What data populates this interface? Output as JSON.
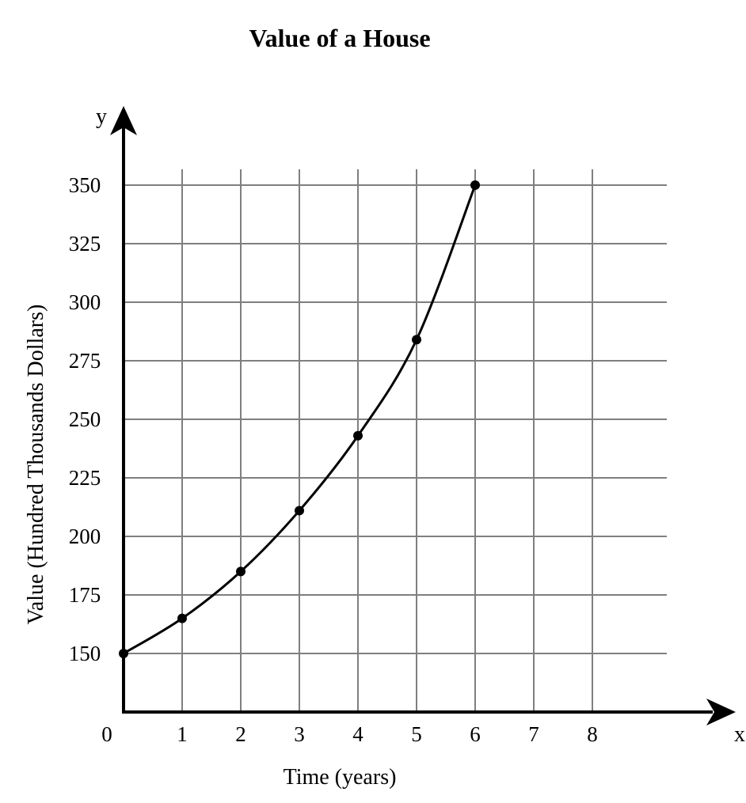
{
  "chart_data": {
    "type": "line",
    "title": "Value of a House",
    "xlabel": "Time (years)",
    "ylabel": "Value (Hundred Thousands Dollars)",
    "x_axis_letter": "x",
    "y_axis_letter": "y",
    "origin_label": "0",
    "x_ticks": [
      "1",
      "2",
      "3",
      "4",
      "5",
      "6",
      "7",
      "8"
    ],
    "y_ticks": [
      "150",
      "175",
      "200",
      "225",
      "250",
      "275",
      "300",
      "325",
      "350"
    ],
    "xlim": [
      0,
      9.3
    ],
    "ylim": [
      125,
      355
    ],
    "grid": true,
    "legend": "none",
    "series": [
      {
        "x": [
          0,
          1,
          2,
          3,
          4,
          5,
          6
        ],
        "y": [
          150,
          165,
          185,
          211,
          243,
          284,
          350
        ]
      }
    ]
  }
}
